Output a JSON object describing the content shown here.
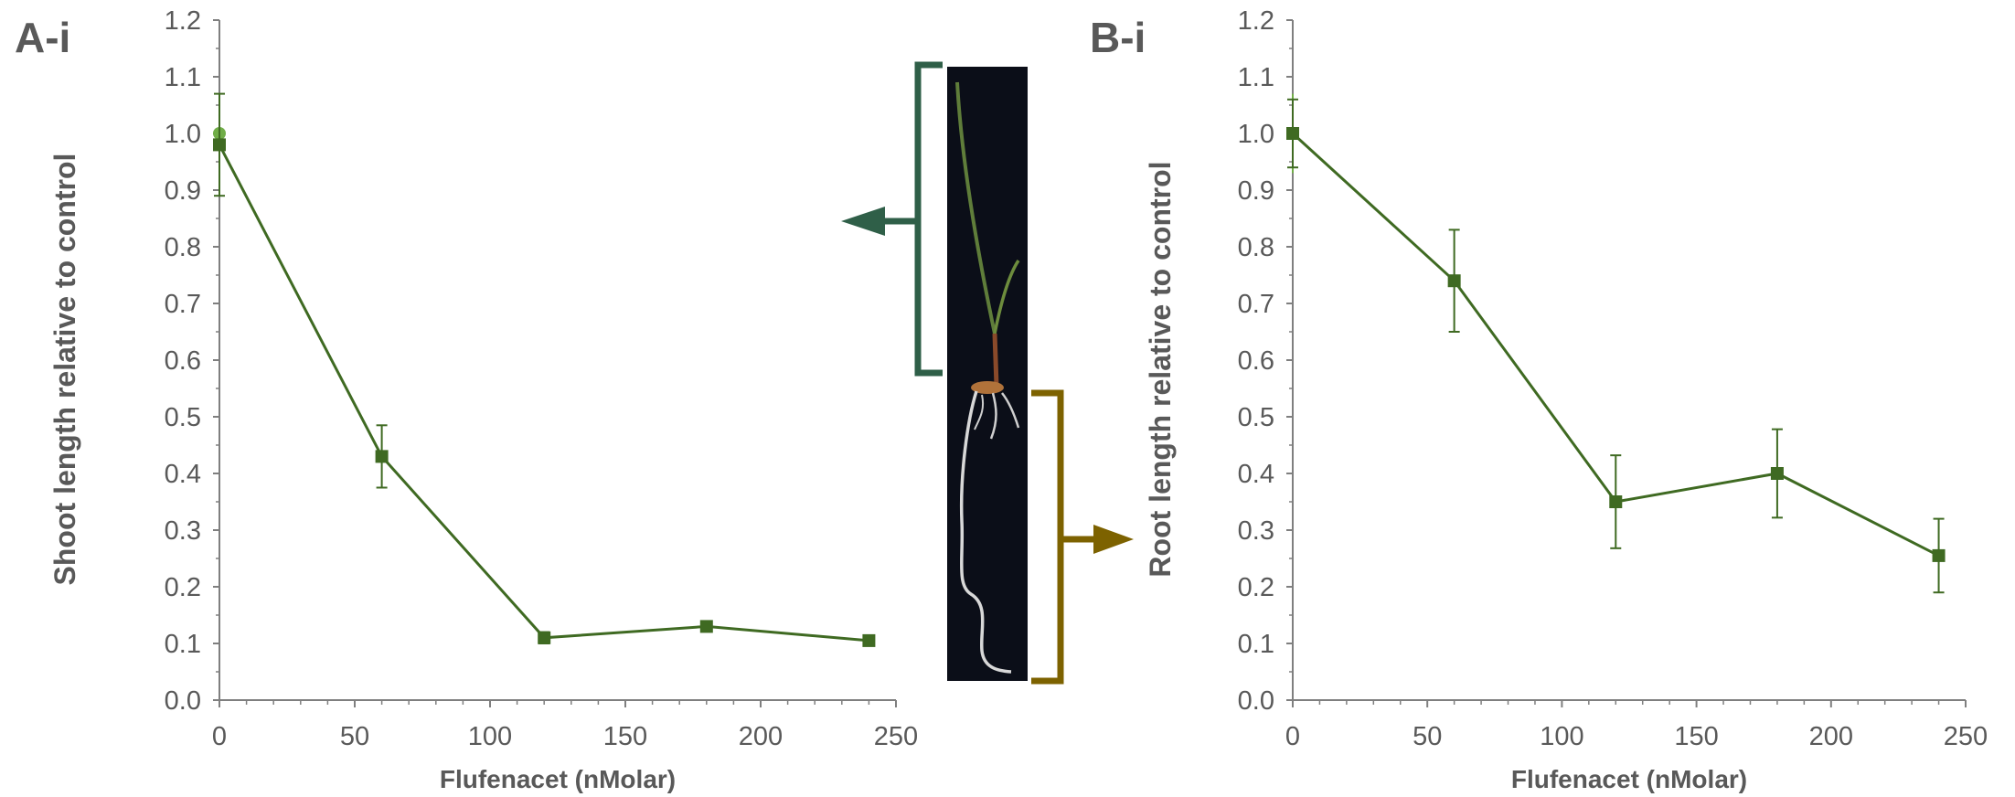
{
  "panels": {
    "a_label": "A-i",
    "b_label": "B-i"
  },
  "colors": {
    "series": "#3f6a22",
    "axis": "#7f7f7f",
    "text": "#595959",
    "shoot_bracket": "#2f5f48",
    "root_bracket": "#7d6200",
    "control_marker": "#70ad47",
    "photo_background": "#0b0e18"
  },
  "photo": {
    "description_icon": "seedling-photo-icon"
  },
  "chart_data": [
    {
      "type": "line",
      "title": "",
      "xlabel": "Flufenacet (nMolar)",
      "ylabel": "Shoot length relative to control",
      "xlim": [
        0,
        250
      ],
      "ylim": [
        0,
        1.2
      ],
      "xticks": [
        "0",
        "50",
        "100",
        "150",
        "200",
        "250"
      ],
      "yticks": [
        "0.0",
        "0.1",
        "0.2",
        "0.3",
        "0.4",
        "0.5",
        "0.6",
        "0.7",
        "0.8",
        "0.9",
        "1.0",
        "1.1",
        "1.2"
      ],
      "grid": false,
      "series": [
        {
          "x": [
            0,
            60,
            120,
            180,
            240
          ],
          "y": [
            0.98,
            0.43,
            0.11,
            0.13,
            0.105
          ],
          "error": [
            0.09,
            0.055,
            0.01,
            0.005,
            0.005
          ],
          "marker": "square"
        }
      ],
      "control_point": {
        "x": 0,
        "y": 1.0,
        "error": 0.07
      }
    },
    {
      "type": "line",
      "title": "",
      "xlabel": "Flufenacet (nMolar)",
      "ylabel": "Root length relative to control",
      "xlim": [
        0,
        250
      ],
      "ylim": [
        0,
        1.2
      ],
      "xticks": [
        "0",
        "50",
        "100",
        "150",
        "200",
        "250"
      ],
      "yticks": [
        "0.0",
        "0.1",
        "0.2",
        "0.3",
        "0.4",
        "0.5",
        "0.6",
        "0.7",
        "0.8",
        "0.9",
        "1.0",
        "1.1",
        "1.2"
      ],
      "grid": false,
      "series": [
        {
          "x": [
            0,
            60,
            120,
            180,
            240
          ],
          "y": [
            1.0,
            0.74,
            0.35,
            0.4,
            0.255
          ],
          "error": [
            0.06,
            0.09,
            0.082,
            0.078,
            0.065
          ],
          "marker": "square"
        }
      ],
      "control_point": {
        "x": 0,
        "y": 1.0,
        "error": 0.07
      }
    }
  ]
}
